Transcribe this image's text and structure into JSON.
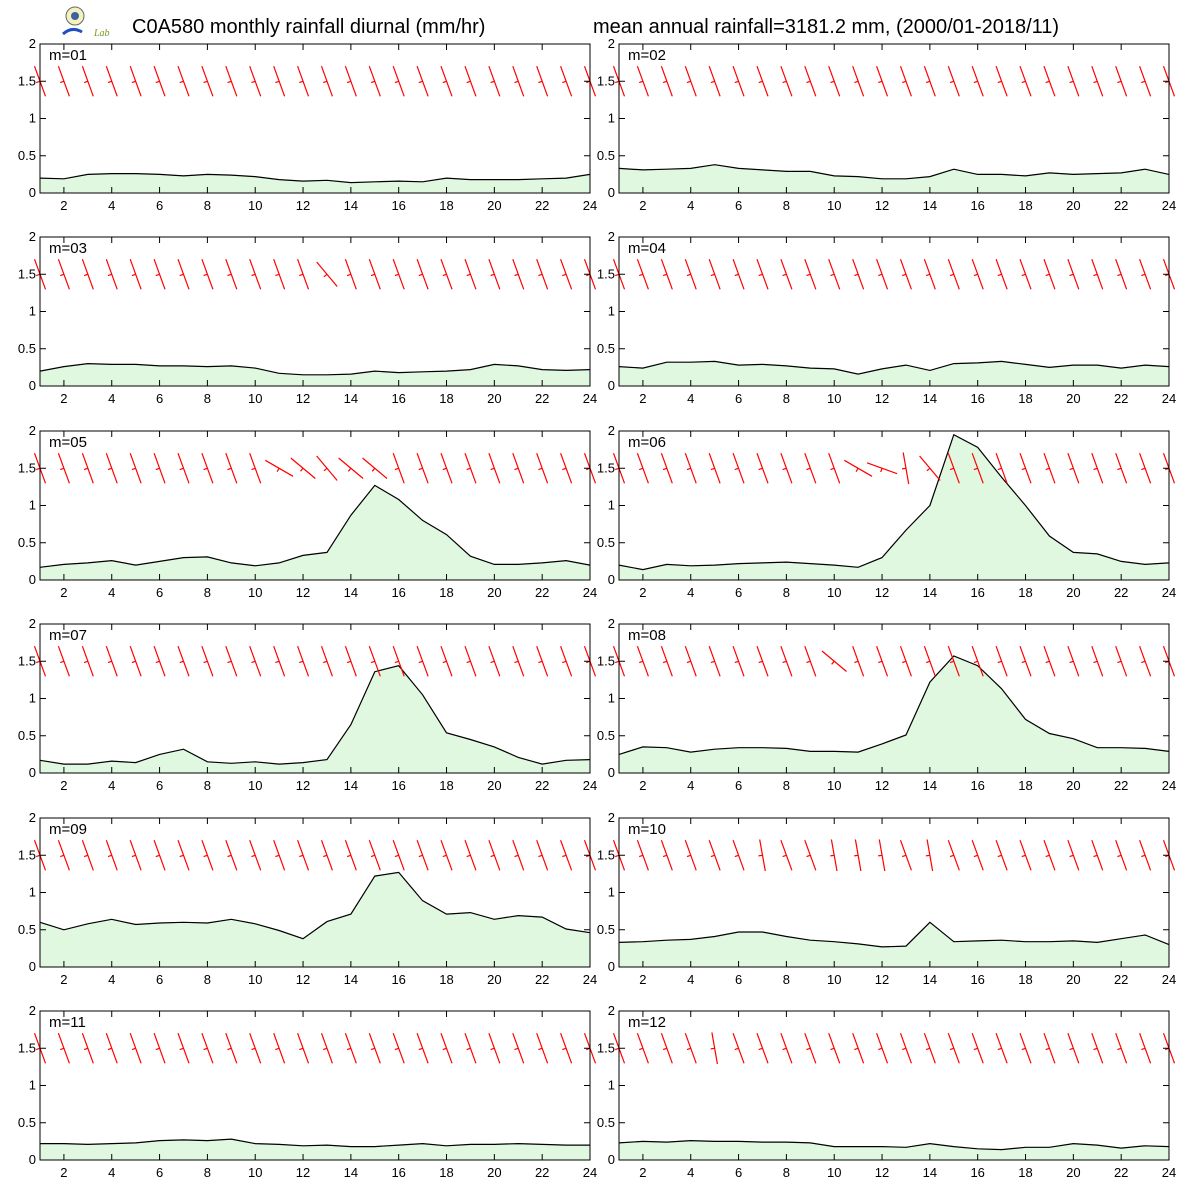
{
  "header": {
    "title_left": "C0A580 monthly rainfall diurnal (mm/hr)",
    "title_right": "mean annual rainfall=3181.2 mm, (2000/01-2018/11)",
    "logo_text": "Lab"
  },
  "chart_data": {
    "type": "area",
    "x": [
      1,
      2,
      3,
      4,
      5,
      6,
      7,
      8,
      9,
      10,
      11,
      12,
      13,
      14,
      15,
      16,
      17,
      18,
      19,
      20,
      21,
      22,
      23,
      24
    ],
    "xticks": [
      2,
      4,
      6,
      8,
      10,
      12,
      14,
      16,
      18,
      20,
      22,
      24
    ],
    "xlim": [
      1,
      24
    ],
    "ylim": [
      0,
      2
    ],
    "yticks": [
      0,
      0.5,
      1,
      1.5,
      2
    ],
    "ytick_labels": [
      "0",
      "0.5",
      "1",
      "1.5",
      "2"
    ],
    "grid": false,
    "fill_color": "#e0f8e0",
    "line_color": "#000000",
    "barb_color": "#ff0000",
    "wind_barb_level": 1.5,
    "panels": [
      {
        "label": "m=01",
        "values": [
          0.2,
          0.19,
          0.25,
          0.26,
          0.26,
          0.25,
          0.23,
          0.25,
          0.24,
          0.22,
          0.18,
          0.16,
          0.17,
          0.14,
          0.15,
          0.16,
          0.15,
          0.2,
          0.18,
          0.18,
          0.18,
          0.19,
          0.2,
          0.25
        ],
        "wind_dir": [
          340,
          340,
          340,
          340,
          340,
          340,
          340,
          340,
          340,
          340,
          340,
          340,
          340,
          340,
          340,
          340,
          340,
          340,
          340,
          340,
          340,
          340,
          340,
          340
        ]
      },
      {
        "label": "m=02",
        "values": [
          0.33,
          0.31,
          0.32,
          0.33,
          0.38,
          0.33,
          0.31,
          0.29,
          0.29,
          0.23,
          0.22,
          0.19,
          0.19,
          0.22,
          0.32,
          0.25,
          0.25,
          0.23,
          0.27,
          0.25,
          0.26,
          0.27,
          0.32,
          0.25
        ],
        "wind_dir": [
          340,
          340,
          340,
          340,
          340,
          340,
          340,
          340,
          340,
          340,
          340,
          340,
          340,
          340,
          340,
          340,
          340,
          340,
          340,
          340,
          340,
          340,
          340,
          340
        ]
      },
      {
        "label": "m=03",
        "values": [
          0.2,
          0.26,
          0.3,
          0.29,
          0.29,
          0.27,
          0.27,
          0.26,
          0.27,
          0.24,
          0.17,
          0.15,
          0.15,
          0.16,
          0.2,
          0.18,
          0.19,
          0.2,
          0.22,
          0.29,
          0.27,
          0.22,
          0.21,
          0.22
        ],
        "wind_dir": [
          340,
          340,
          340,
          340,
          340,
          340,
          340,
          340,
          340,
          340,
          340,
          340,
          320,
          340,
          340,
          340,
          340,
          340,
          340,
          340,
          340,
          340,
          340,
          340
        ]
      },
      {
        "label": "m=04",
        "values": [
          0.26,
          0.24,
          0.32,
          0.32,
          0.33,
          0.28,
          0.29,
          0.27,
          0.24,
          0.23,
          0.16,
          0.23,
          0.28,
          0.21,
          0.3,
          0.31,
          0.33,
          0.29,
          0.25,
          0.28,
          0.28,
          0.24,
          0.28,
          0.26
        ],
        "wind_dir": [
          340,
          340,
          340,
          340,
          340,
          340,
          340,
          340,
          340,
          340,
          340,
          340,
          340,
          340,
          340,
          340,
          340,
          340,
          340,
          340,
          340,
          340,
          340,
          340
        ]
      },
      {
        "label": "m=05",
        "values": [
          0.17,
          0.21,
          0.23,
          0.26,
          0.2,
          0.25,
          0.3,
          0.31,
          0.23,
          0.19,
          0.23,
          0.33,
          0.37,
          0.87,
          1.27,
          1.08,
          0.8,
          0.61,
          0.32,
          0.21,
          0.21,
          0.23,
          0.26,
          0.2
        ],
        "wind_dir": [
          340,
          340,
          340,
          340,
          340,
          340,
          340,
          340,
          340,
          340,
          300,
          310,
          320,
          310,
          310,
          340,
          340,
          340,
          340,
          340,
          340,
          340,
          340,
          340
        ]
      },
      {
        "label": "m=06",
        "values": [
          0.2,
          0.14,
          0.21,
          0.19,
          0.2,
          0.22,
          0.23,
          0.24,
          0.22,
          0.2,
          0.17,
          0.3,
          0.67,
          1.0,
          1.95,
          1.78,
          1.38,
          1.0,
          0.59,
          0.37,
          0.35,
          0.25,
          0.21,
          0.23
        ],
        "wind_dir": [
          340,
          340,
          340,
          340,
          340,
          340,
          340,
          340,
          340,
          340,
          300,
          290,
          350,
          320,
          340,
          340,
          340,
          340,
          340,
          340,
          340,
          340,
          340,
          340
        ]
      },
      {
        "label": "m=07",
        "values": [
          0.17,
          0.12,
          0.12,
          0.16,
          0.14,
          0.25,
          0.32,
          0.15,
          0.13,
          0.15,
          0.12,
          0.14,
          0.18,
          0.65,
          1.36,
          1.44,
          1.05,
          0.54,
          0.45,
          0.35,
          0.21,
          0.12,
          0.17,
          0.18
        ],
        "wind_dir": [
          340,
          340,
          340,
          340,
          340,
          340,
          340,
          340,
          340,
          340,
          340,
          340,
          340,
          340,
          340,
          340,
          340,
          340,
          340,
          340,
          340,
          340,
          340,
          340
        ]
      },
      {
        "label": "m=08",
        "values": [
          0.25,
          0.35,
          0.34,
          0.28,
          0.32,
          0.34,
          0.34,
          0.33,
          0.29,
          0.29,
          0.28,
          0.39,
          0.51,
          1.22,
          1.57,
          1.44,
          1.13,
          0.72,
          0.53,
          0.46,
          0.34,
          0.34,
          0.33,
          0.29
        ],
        "wind_dir": [
          340,
          340,
          340,
          340,
          340,
          340,
          340,
          340,
          340,
          310,
          340,
          340,
          340,
          340,
          340,
          340,
          340,
          340,
          340,
          340,
          340,
          340,
          340,
          340
        ]
      },
      {
        "label": "m=09",
        "values": [
          0.6,
          0.5,
          0.58,
          0.64,
          0.57,
          0.59,
          0.6,
          0.59,
          0.64,
          0.58,
          0.49,
          0.38,
          0.61,
          0.71,
          1.22,
          1.27,
          0.89,
          0.71,
          0.73,
          0.64,
          0.69,
          0.67,
          0.51,
          0.46
        ],
        "wind_dir": [
          340,
          340,
          340,
          340,
          340,
          340,
          340,
          340,
          340,
          340,
          340,
          340,
          340,
          340,
          340,
          340,
          340,
          340,
          340,
          340,
          340,
          340,
          340,
          340
        ]
      },
      {
        "label": "m=10",
        "values": [
          0.33,
          0.34,
          0.36,
          0.37,
          0.41,
          0.47,
          0.47,
          0.41,
          0.36,
          0.34,
          0.31,
          0.27,
          0.28,
          0.6,
          0.34,
          0.35,
          0.36,
          0.34,
          0.34,
          0.35,
          0.33,
          0.38,
          0.43,
          0.3
        ],
        "wind_dir": [
          340,
          340,
          340,
          340,
          340,
          340,
          350,
          340,
          340,
          350,
          350,
          350,
          340,
          350,
          340,
          340,
          340,
          340,
          340,
          340,
          340,
          340,
          340,
          340
        ]
      },
      {
        "label": "m=11",
        "values": [
          0.22,
          0.22,
          0.21,
          0.22,
          0.23,
          0.26,
          0.27,
          0.26,
          0.28,
          0.22,
          0.21,
          0.19,
          0.2,
          0.18,
          0.18,
          0.2,
          0.22,
          0.19,
          0.21,
          0.21,
          0.22,
          0.21,
          0.2,
          0.2
        ],
        "wind_dir": [
          340,
          340,
          340,
          340,
          340,
          340,
          340,
          340,
          340,
          340,
          340,
          340,
          340,
          340,
          340,
          340,
          340,
          340,
          340,
          340,
          340,
          340,
          340,
          340
        ]
      },
      {
        "label": "m=12",
        "values": [
          0.23,
          0.25,
          0.24,
          0.26,
          0.25,
          0.25,
          0.24,
          0.24,
          0.23,
          0.18,
          0.18,
          0.18,
          0.17,
          0.22,
          0.18,
          0.15,
          0.14,
          0.17,
          0.17,
          0.22,
          0.2,
          0.16,
          0.19,
          0.18
        ],
        "wind_dir": [
          340,
          340,
          340,
          340,
          350,
          340,
          340,
          340,
          340,
          340,
          340,
          340,
          340,
          340,
          340,
          340,
          340,
          340,
          340,
          340,
          340,
          340,
          340,
          340
        ]
      }
    ]
  }
}
